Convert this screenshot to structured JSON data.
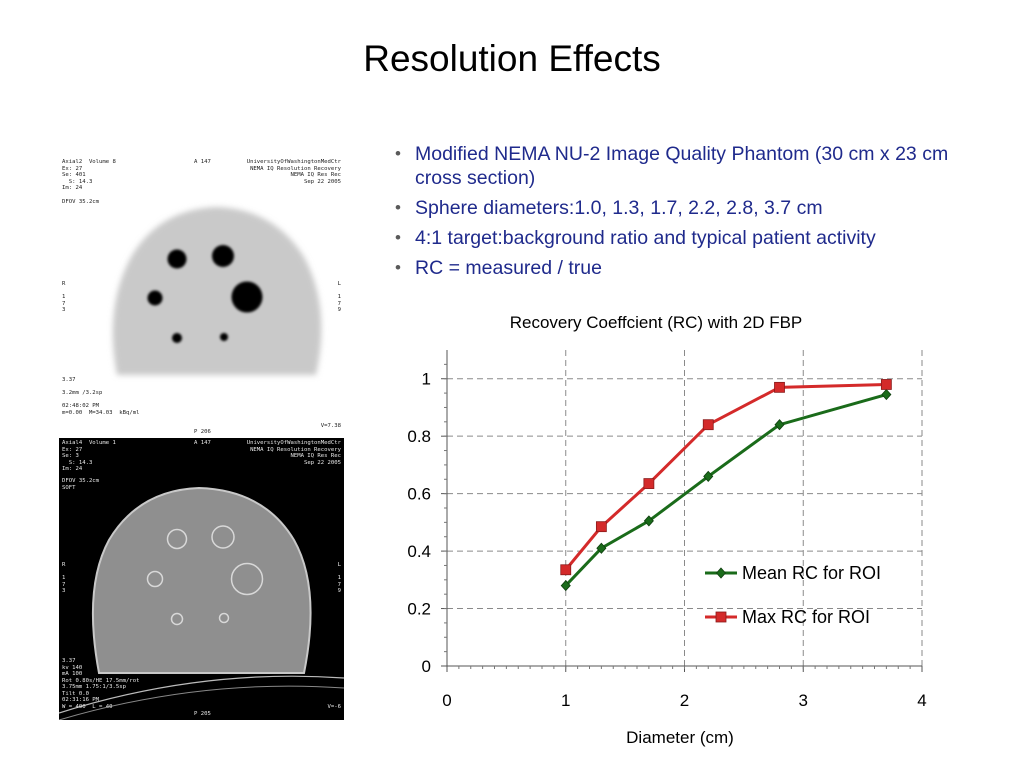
{
  "slide": {
    "title": "Resolution Effects",
    "bullets": [
      "Modified NEMA NU-2 Image Quality Phantom (30 cm x 23 cm cross section)",
      "Sphere diameters:1.0, 1.3, 1.7, 2.2, 2.8, 3.7 cm",
      "4:1 target:background ratio and typical patient activity",
      "RC = measured / true"
    ],
    "colors": {
      "bullet_text": "#1f2a8c",
      "title": "#000000"
    }
  },
  "pet_image": {
    "top_left": "Axial2  Volume 8\nEx: 27\nSe: 401\n  S: 14.3\nIm: 24",
    "top_center": "A 147",
    "top_right": "UniversityOfWashingtonMedCtr\nNEMA IQ Resolution Recovery\nNEMA IQ Res Rec\nSep 22 2005",
    "dfov": "DFOV 35.2cm",
    "left_orient": "R\n\n1\n7\n3",
    "right_orient": "L\n\n1\n7\n9",
    "bottom_left": "3.37\n\n3.2mm /3.2sp\n\n02:48:02 PM\nm=0.00  M=34.03  kBq/ml",
    "bottom_center": "P 206",
    "bottom_right": "V=7.38"
  },
  "ct_image": {
    "top_left": "Axial4  Volume 1\nEx: 27\nSe: 3\n  S: 14.3\nIm: 24",
    "top_center": "A 147",
    "top_right": "UniversityOfWashingtonMedCtr\nNEMA IQ Resolution Recovery\nNEMA IQ Res Rec\nSep 22 2005",
    "dfov": "DFOV 35.2cm\nSOFT",
    "left_orient": "R\n\n1\n7\n3",
    "right_orient": "L\n\n1\n7\n9",
    "bottom_left": "3.37\nkv 140\nmA 100\nRot 0.80s/HE 17.5mm/rot\n3.75mm 1.75:1/3.5sp\nTilt 0.0\n02:31:16 PM\nW = 400  L = 40",
    "bottom_center": "P 205",
    "bottom_right": "V=-6"
  },
  "chart_data": {
    "type": "line",
    "title": "Recovery Coeffcient (RC) with 2D FBP",
    "xlabel": "Diameter (cm)",
    "ylabel": "",
    "xlim": [
      0,
      4
    ],
    "ylim": [
      0,
      1.1
    ],
    "xticks": [
      0,
      1,
      2,
      3,
      4
    ],
    "yticks": [
      0,
      0.2,
      0.4,
      0.6,
      0.8,
      1
    ],
    "xtick_labels": [
      "0",
      "1",
      "2",
      "3",
      "4"
    ],
    "ytick_labels": [
      "0",
      "0.2",
      "0.4",
      "0.6",
      "0.8",
      "1"
    ],
    "grid": true,
    "legend_position": "lower-right",
    "series": [
      {
        "name": "Mean RC for ROI",
        "color": "#1a6b1a",
        "marker": "diamond",
        "x": [
          1.0,
          1.3,
          1.7,
          2.2,
          2.8,
          3.7
        ],
        "y": [
          0.28,
          0.41,
          0.505,
          0.66,
          0.84,
          0.945
        ]
      },
      {
        "name": "Max RC for ROI",
        "color": "#d42a2a",
        "marker": "square",
        "x": [
          1.0,
          1.3,
          1.7,
          2.2,
          2.8,
          3.7
        ],
        "y": [
          0.335,
          0.485,
          0.635,
          0.84,
          0.97,
          0.98
        ]
      }
    ]
  }
}
